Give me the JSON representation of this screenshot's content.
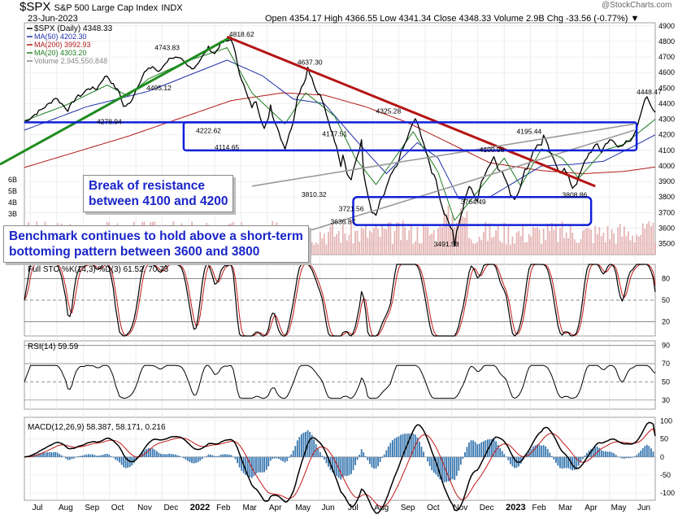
{
  "header": {
    "ticker": "$SPX",
    "name": "S&P 500 Large Cap Index",
    "exchange": "INDX",
    "date": "23-Jun-2023",
    "ohlc": "Open 4354.17  High 4366.55  Low 4341.34  Close 4348.33  Volume 2.9B  Chg -33.56 (-0.77%) ▼",
    "watermark": "@StockCharts.com"
  },
  "legend": {
    "price": "$SPX (Daily) 4348.33",
    "ma50": "MA(50) 4202.30",
    "ma200": "MA(200) 3992.93",
    "ma20": "MA(20) 4303.20",
    "volume": "Volume 2,945,550,848"
  },
  "colors": {
    "price": "#000000",
    "ma50": "#1f2fa8",
    "ma200": "#b01818",
    "ma20": "#1e7d1e",
    "support_box": "#1020d8",
    "uptrend": "#1f8c1f",
    "downtrend": "#b51414",
    "wedge": "#9a9a9a",
    "volume": "#e0a8a8",
    "sto_k": "#000000",
    "sto_d": "#c21818",
    "macd_hist": "#3a78b0",
    "callout_text": "#1a25c8"
  },
  "callouts": {
    "resistance": [
      "Break of resistance",
      "between 4100 and 4200"
    ],
    "bottoming": [
      "Benchmark continues to hold above a short-term",
      "bottoming pattern between 3600 and 3800"
    ]
  },
  "chart_data": [
    {
      "type": "line",
      "title": "$SPX (Daily) 4348.33",
      "ylim": [
        3430,
        4920
      ],
      "yticks": [
        3500,
        3600,
        3700,
        3800,
        3900,
        4000,
        4100,
        4200,
        4300,
        4400,
        4500,
        4600,
        4700,
        4800,
        4900
      ],
      "volume_ticks": [
        "6B",
        "5B",
        "4B",
        "3B"
      ],
      "xlabels": [
        "Jul",
        "Aug",
        "Sep",
        "Oct",
        "Nov",
        "Dec",
        "2022",
        "Feb",
        "Mar",
        "Apr",
        "May",
        "Jun",
        "Jul",
        "Aug",
        "Sep",
        "Oct",
        "Nov",
        "Dec",
        "2023",
        "Feb",
        "Mar",
        "Apr",
        "May",
        "Jun"
      ],
      "price_points": [
        [
          0,
          4280
        ],
        [
          4,
          4320
        ],
        [
          8,
          4360
        ],
        [
          12,
          4400
        ],
        [
          15,
          4440
        ],
        [
          18,
          4400
        ],
        [
          21,
          4360
        ],
        [
          25,
          4440
        ],
        [
          28,
          4460
        ],
        [
          31,
          4500
        ],
        [
          35,
          4495
        ],
        [
          38,
          4560
        ],
        [
          40,
          4580
        ],
        [
          43,
          4520
        ],
        [
          46,
          4470
        ],
        [
          48,
          4380
        ],
        [
          51,
          4400
        ],
        [
          55,
          4520
        ],
        [
          58,
          4600
        ],
        [
          62,
          4640
        ],
        [
          65,
          4600
        ],
        [
          68,
          4660
        ],
        [
          71,
          4700
        ],
        [
          74,
          4690
        ],
        [
          76,
          4680
        ],
        [
          79,
          4640
        ],
        [
          82,
          4630
        ],
        [
          86,
          4700
        ],
        [
          89,
          4760
        ],
        [
          92,
          4720
        ],
        [
          95,
          4790
        ],
        [
          98,
          4800
        ],
        [
          100,
          4818
        ],
        [
          102,
          4720
        ],
        [
          104,
          4600
        ],
        [
          106,
          4520
        ],
        [
          108,
          4440
        ],
        [
          110,
          4380
        ],
        [
          112,
          4420
        ],
        [
          114,
          4320
        ],
        [
          116,
          4240
        ],
        [
          118,
          4300
        ],
        [
          119,
          4400
        ],
        [
          120,
          4320
        ],
        [
          122,
          4260
        ],
        [
          124,
          4180
        ],
        [
          126,
          4114
        ],
        [
          128,
          4200
        ],
        [
          130,
          4290
        ],
        [
          132,
          4440
        ],
        [
          134,
          4510
        ],
        [
          136,
          4560
        ],
        [
          137,
          4637
        ],
        [
          139,
          4560
        ],
        [
          141,
          4480
        ],
        [
          143,
          4450
        ],
        [
          145,
          4380
        ],
        [
          147,
          4290
        ],
        [
          149,
          4200
        ],
        [
          151,
          4130
        ],
        [
          153,
          4000
        ],
        [
          154,
          4080
        ],
        [
          156,
          3950
        ],
        [
          158,
          3910
        ],
        [
          160,
          4020
        ],
        [
          162,
          4110
        ],
        [
          163,
          4160
        ],
        [
          164,
          3950
        ],
        [
          166,
          3810
        ],
        [
          168,
          3700
        ],
        [
          170,
          3674
        ],
        [
          172,
          3780
        ],
        [
          174,
          3810
        ],
        [
          176,
          3900
        ],
        [
          178,
          3960
        ],
        [
          180,
          4000
        ],
        [
          182,
          4080
        ],
        [
          184,
          4140
        ],
        [
          186,
          4210
        ],
        [
          188,
          4280
        ],
        [
          189,
          4305
        ],
        [
          191,
          4230
        ],
        [
          193,
          4150
        ],
        [
          195,
          4050
        ],
        [
          197,
          3960
        ],
        [
          199,
          3920
        ],
        [
          201,
          3780
        ],
        [
          203,
          3700
        ],
        [
          205,
          3640
        ],
        [
          207,
          3590
        ],
        [
          208,
          3492
        ],
        [
          209,
          3580
        ],
        [
          211,
          3670
        ],
        [
          213,
          3780
        ],
        [
          215,
          3870
        ],
        [
          217,
          3830
        ],
        [
          219,
          3770
        ],
        [
          221,
          3900
        ],
        [
          223,
          3960
        ],
        [
          225,
          4010
        ],
        [
          227,
          4060
        ],
        [
          229,
          3990
        ],
        [
          231,
          3960
        ],
        [
          233,
          3900
        ],
        [
          235,
          3820
        ],
        [
          237,
          3790
        ],
        [
          238,
          3808
        ],
        [
          240,
          3880
        ],
        [
          242,
          3970
        ],
        [
          244,
          4010
        ],
        [
          246,
          4100
        ],
        [
          248,
          4130
        ],
        [
          250,
          4140
        ],
        [
          251,
          4195
        ],
        [
          253,
          4130
        ],
        [
          255,
          4060
        ],
        [
          257,
          4010
        ],
        [
          259,
          3960
        ],
        [
          261,
          3980
        ],
        [
          263,
          3930
        ],
        [
          265,
          3860
        ],
        [
          267,
          3890
        ],
        [
          269,
          3960
        ],
        [
          271,
          4030
        ],
        [
          273,
          4080
        ],
        [
          275,
          4110
        ],
        [
          277,
          4140
        ],
        [
          279,
          4090
        ],
        [
          281,
          4140
        ],
        [
          283,
          4170
        ],
        [
          285,
          4150
        ],
        [
          287,
          4120
        ],
        [
          289,
          4130
        ],
        [
          291,
          4170
        ],
        [
          293,
          4150
        ],
        [
          295,
          4200
        ],
        [
          297,
          4280
        ],
        [
          299,
          4390
        ],
        [
          301,
          4448
        ],
        [
          303,
          4390
        ],
        [
          305,
          4348
        ]
      ],
      "ma20_points": [
        [
          0,
          4290
        ],
        [
          20,
          4390
        ],
        [
          40,
          4520
        ],
        [
          50,
          4450
        ],
        [
          60,
          4560
        ],
        [
          80,
          4680
        ],
        [
          98,
          4760
        ],
        [
          110,
          4470
        ],
        [
          126,
          4270
        ],
        [
          136,
          4470
        ],
        [
          150,
          4320
        ],
        [
          160,
          4050
        ],
        [
          170,
          3880
        ],
        [
          188,
          4220
        ],
        [
          200,
          3960
        ],
        [
          208,
          3650
        ],
        [
          220,
          3850
        ],
        [
          232,
          4050
        ],
        [
          240,
          3870
        ],
        [
          250,
          4110
        ],
        [
          260,
          4050
        ],
        [
          268,
          3920
        ],
        [
          280,
          4100
        ],
        [
          290,
          4140
        ],
        [
          305,
          4300
        ]
      ],
      "ma50_points": [
        [
          0,
          4230
        ],
        [
          30,
          4380
        ],
        [
          60,
          4480
        ],
        [
          98,
          4680
        ],
        [
          115,
          4580
        ],
        [
          130,
          4430
        ],
        [
          145,
          4400
        ],
        [
          160,
          4170
        ],
        [
          175,
          3950
        ],
        [
          190,
          4150
        ],
        [
          200,
          4050
        ],
        [
          210,
          3790
        ],
        [
          225,
          3800
        ],
        [
          240,
          3920
        ],
        [
          250,
          4000
        ],
        [
          265,
          4010
        ],
        [
          280,
          4030
        ],
        [
          295,
          4130
        ],
        [
          305,
          4200
        ]
      ],
      "ma200_points": [
        [
          0,
          3990
        ],
        [
          50,
          4190
        ],
        [
          100,
          4420
        ],
        [
          125,
          4470
        ],
        [
          145,
          4455
        ],
        [
          165,
          4380
        ],
        [
          185,
          4280
        ],
        [
          205,
          4150
        ],
        [
          225,
          4020
        ],
        [
          250,
          3970
        ],
        [
          270,
          3950
        ],
        [
          290,
          3965
        ],
        [
          305,
          3993
        ]
      ],
      "annotations": [
        "4818.62",
        "4743.83",
        "4637.30",
        "4495.12",
        "4278.94",
        "4222.62",
        "4114.65",
        "4177.51",
        "4325.28",
        "4195.44",
        "4100.96",
        "4448.47",
        "3810.32",
        "3721.56",
        "3636.87",
        "3764.49",
        "3808.86",
        "3491.58"
      ]
    },
    {
      "type": "line",
      "title": "Full STO %K(14,3) %D(3) 61.52, 70.73",
      "ylim": [
        0,
        100
      ],
      "yticks": [
        20,
        50,
        80
      ],
      "series": [
        {
          "name": "%K",
          "last": 61.52
        },
        {
          "name": "%D",
          "last": 70.73
        }
      ]
    },
    {
      "type": "line",
      "title": "RSI(14) 59.59",
      "ylim": [
        20,
        95
      ],
      "yticks": [
        30,
        50,
        70,
        90
      ],
      "last": 59.59
    },
    {
      "type": "line",
      "title": "MACD(12,26,9) 58.387, 58.171, 0.216",
      "ylim": [
        -120,
        110
      ],
      "yticks": [
        100,
        50,
        0,
        -50,
        -100
      ],
      "series": [
        {
          "name": "MACD",
          "last": 58.387
        },
        {
          "name": "Signal",
          "last": 58.171
        },
        {
          "name": "Histogram",
          "last": 0.216
        }
      ]
    }
  ]
}
